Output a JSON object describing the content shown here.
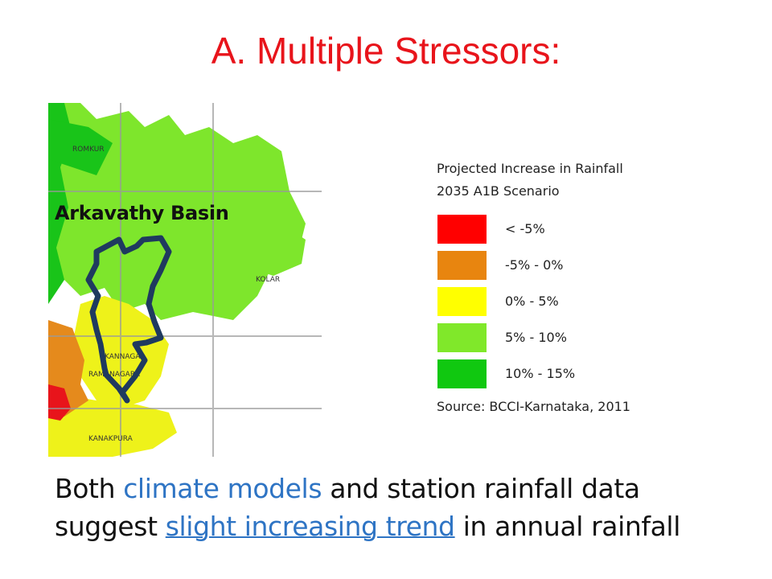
{
  "title": "A. Multiple Stressors:",
  "map": {
    "basin_label": "Arkavathy Basin",
    "region_labels": [
      "ROMKUR",
      "KOLAR",
      "KANNAGAR",
      "KANAKPURA",
      "RAMANAGARA"
    ],
    "basin_outline_color": "#1f3a5f",
    "colors": {
      "red": "#e8141b",
      "orange": "#e58a1c",
      "yellow": "#eef21a",
      "light_green": "#7ee62c",
      "green": "#19c419"
    }
  },
  "legend": {
    "title_line1": "Projected Increase in Rainfall",
    "title_line2": "2035 A1B Scenario",
    "items": [
      {
        "label": "< -5%",
        "color": "#ff0000"
      },
      {
        "label": "-5% - 0%",
        "color": "#e8850f"
      },
      {
        "label": "0% - 5%",
        "color": "#ffff00"
      },
      {
        "label": "5% - 10%",
        "color": "#80e82a"
      },
      {
        "label": "10% - 15%",
        "color": "#10c810"
      }
    ],
    "source": "Source: BCCI-Karnataka, 2011"
  },
  "caption": {
    "part1": "Both ",
    "highlight1": "climate models",
    "part2": " and station rainfall data",
    "part3": "suggest ",
    "highlight2": "slight increasing trend",
    "part4": " in annual rainfall"
  }
}
